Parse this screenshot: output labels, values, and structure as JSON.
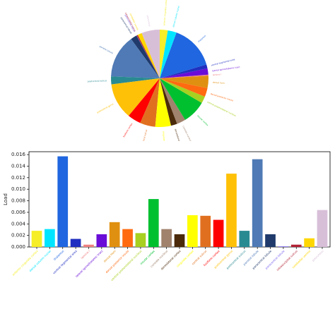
{
  "chart_data": [
    {
      "type": "pie",
      "slices": [
        {
          "label": "precuneus",
          "value": 0.0064,
          "color": "#d8bfd8"
        },
        {
          "label": "cerebellar vermis",
          "value": 0.0015,
          "color": "#ffd700"
        },
        {
          "label": "intraoccipital sulcus",
          "value": 0.0004,
          "color": "#b22234"
        },
        {
          "label": "paracentral lobule",
          "value": 0.0001,
          "color": "#7b68ee"
        },
        {
          "label": "paracentral lobule",
          "value": 0.0022,
          "color": "#1f3a6b"
        },
        {
          "label": "parietal lobule",
          "value": 0.0152,
          "color": "#4f7ab5"
        },
        {
          "label": "postcentral sulcus",
          "value": 0.0028,
          "color": "#2a8a92"
        },
        {
          "label": "postcentral gyrus",
          "value": 0.0127,
          "color": "#ffc107"
        },
        {
          "label": "fusiform cortex",
          "value": 0.0047,
          "color": "#ff0000"
        },
        {
          "label": "central sulcus",
          "value": 0.0054,
          "color": "#e07020"
        },
        {
          "label": "cingulate cortex",
          "value": 0.0055,
          "color": "#ffff00"
        },
        {
          "label": "dorsolateral cortex",
          "value": 0.0022,
          "color": "#4a2a0a"
        },
        {
          "label": "cuneate nucleus",
          "value": 0.0031,
          "color": "#a0826d"
        },
        {
          "label": "insular cortex",
          "value": 0.0083,
          "color": "#00c030"
        },
        {
          "label": "ventral posterolateral nucleus",
          "value": 0.0024,
          "color": "#a8d020"
        },
        {
          "label": "dorsal posterior insula",
          "value": 0.0031,
          "color": "#ff6a10"
        },
        {
          "label": "dorsal horn",
          "value": 0.0043,
          "color": "#e09010"
        },
        {
          "label": "lamina I",
          "value": 0.0004,
          "color": "#f08080"
        },
        {
          "label": "lateral spinothalamic tract",
          "value": 0.0022,
          "color": "#6a0dd8"
        },
        {
          "label": "ventral tegmental area",
          "value": 0.0014,
          "color": "#2030c0"
        },
        {
          "label": "thalamus",
          "value": 0.0157,
          "color": "#1f66e0"
        },
        {
          "label": "dorsal column nuclei",
          "value": 0.0031,
          "color": "#00e5ff"
        },
        {
          "label": "anterior cingulate cortex",
          "value": 0.0028,
          "color": "#f5ee28"
        }
      ]
    },
    {
      "type": "bar",
      "ylabel": "Load",
      "ylim": [
        0,
        0.0165
      ],
      "yticks": [
        0.0,
        0.002,
        0.004,
        0.006,
        0.008,
        0.01,
        0.012,
        0.014,
        0.016
      ],
      "ytick_labels": [
        "0.000",
        "0.002",
        "0.004",
        "0.006",
        "0.008",
        "0.010",
        "0.012",
        "0.014",
        "0.016"
      ],
      "grid": false,
      "categories": [
        "anterior cingulate cortex",
        "dorsal column nuclei",
        "thalamus",
        "ventral tegmental area",
        "lamina I",
        "lateral spinothalamic tract",
        "dorsal horn",
        "dorsal posterior insula",
        "ventral posterolateral nucleus",
        "insular cortex",
        "cuneate nucleus",
        "dorsolateral cortex",
        "cingulate cortex",
        "central sulcus",
        "fusiform cortex",
        "postcentral gyrus",
        "postcentral sulcus",
        "parietal lobule",
        "paracentral lobule",
        "paracentral lobule",
        "intraoccipital sulcus",
        "cerebellar vermis",
        "precuneus"
      ],
      "values": [
        0.0028,
        0.0031,
        0.0157,
        0.0014,
        0.0004,
        0.0022,
        0.0043,
        0.0031,
        0.0024,
        0.0083,
        0.0031,
        0.0022,
        0.0055,
        0.0054,
        0.0047,
        0.0127,
        0.0028,
        0.0152,
        0.0022,
        0.0001,
        0.0004,
        0.0015,
        0.0064
      ],
      "colors": [
        "#f5ee28",
        "#00e5ff",
        "#1f66e0",
        "#2030c0",
        "#f08080",
        "#6a0dd8",
        "#e09010",
        "#ff6a10",
        "#a8d020",
        "#00c030",
        "#a0826d",
        "#4a2a0a",
        "#ffff00",
        "#e07020",
        "#ff0000",
        "#ffc107",
        "#2a8a92",
        "#4f7ab5",
        "#1f3a6b",
        "#7b68ee",
        "#b22234",
        "#ffd700",
        "#d8bfd8"
      ]
    }
  ]
}
